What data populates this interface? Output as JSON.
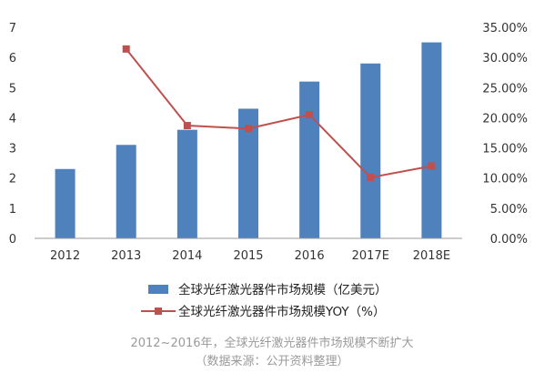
{
  "chart_data": {
    "type": "bar",
    "categories": [
      "2012",
      "2013",
      "2014",
      "2015",
      "2016",
      "2017E",
      "2018E"
    ],
    "series": [
      {
        "name": "全球光纤激光器件市场规模（亿美元）",
        "type": "bar",
        "axis": "left",
        "color": "#4f81bd",
        "values": [
          2.3,
          3.1,
          3.6,
          4.3,
          5.2,
          5.8,
          6.5
        ]
      },
      {
        "name": "全球光纤激光器件市场规模YOY（%）",
        "type": "line",
        "axis": "right",
        "color": "#c0504d",
        "values": [
          null,
          31.4,
          18.7,
          18.2,
          20.5,
          10.1,
          12.0
        ]
      }
    ],
    "y_left": {
      "ylim": [
        0,
        7
      ],
      "ticks": [
        "0",
        "1",
        "2",
        "3",
        "4",
        "5",
        "6",
        "7"
      ]
    },
    "y_right": {
      "ylim": [
        0,
        35
      ],
      "ticks": [
        "0.00%",
        "5.00%",
        "10.00%",
        "15.00%",
        "20.00%",
        "25.00%",
        "30.00%",
        "35.00%"
      ]
    },
    "grid": false,
    "legend": "bottom",
    "title": "",
    "xlabel": "",
    "ylabel": ""
  },
  "caption": {
    "line1": "2012~2016年，全球光纤激光器件市场规模不断扩大",
    "line2": "（数据来源：公开资料整理）"
  }
}
